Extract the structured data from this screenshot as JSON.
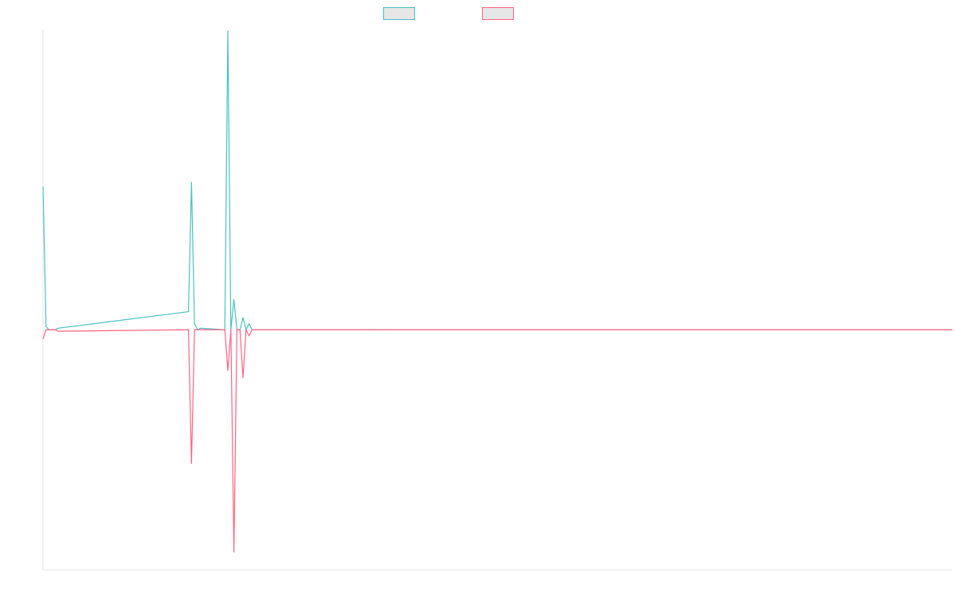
{
  "chart_data": {
    "type": "line",
    "title": "",
    "xlabel": "",
    "ylabel": "",
    "grid": false,
    "legend_placement": "top-center",
    "ylim": [
      -0.8,
      1.0
    ],
    "xlim": [
      0,
      300
    ],
    "x": [
      0,
      1,
      2,
      3,
      4,
      5,
      48,
      49,
      50,
      51,
      52,
      60,
      61,
      62,
      63,
      64,
      65,
      66,
      67,
      68,
      69,
      70,
      108,
      300
    ],
    "series": [
      {
        "name": "",
        "color": "#4bc0c0",
        "values": [
          0.475,
          0.01,
          0.0,
          0.0,
          0.0,
          0.005,
          0.06,
          0.49,
          0.02,
          0.0,
          0.005,
          0.0,
          0.995,
          0.0,
          0.1,
          0.0,
          0.0,
          0.04,
          0.0,
          0.02,
          0.0,
          0.0,
          0.0,
          0.0
        ]
      },
      {
        "name": "",
        "color": "#ff6384",
        "values": [
          -0.03,
          0.0,
          0.0,
          0.0,
          0.0,
          -0.005,
          0.0,
          -0.445,
          0.0,
          0.0,
          0.0,
          0.0,
          -0.135,
          0.0,
          -0.74,
          0.0,
          0.0,
          -0.16,
          0.0,
          -0.02,
          0.0,
          0.0,
          0.0,
          0.0
        ]
      }
    ]
  }
}
